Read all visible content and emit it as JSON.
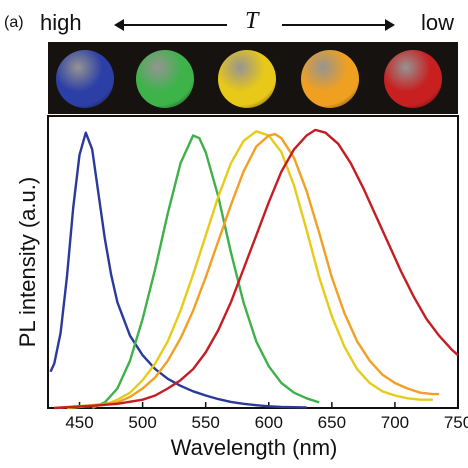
{
  "header": {
    "panel_label": "(a)",
    "high_label": "high",
    "temperature_symbol": "T",
    "low_label": "low"
  },
  "spheres": [
    {
      "color": "#2c3fa6"
    },
    {
      "color": "#3db34a"
    },
    {
      "color": "#e8c818"
    },
    {
      "color": "#f0a020"
    },
    {
      "color": "#c82020"
    }
  ],
  "chart_data": {
    "type": "line",
    "xlabel": "Wavelength (nm)",
    "ylabel": "PL intensity (a.u.)",
    "xlim": [
      425,
      750
    ],
    "ylim": [
      0,
      1.05
    ],
    "xticks": [
      450,
      500,
      550,
      600,
      650,
      700,
      750
    ],
    "series": [
      {
        "color": "#2b3a9a",
        "values": [
          [
            427,
            0.13
          ],
          [
            430,
            0.16
          ],
          [
            435,
            0.27
          ],
          [
            440,
            0.47
          ],
          [
            445,
            0.72
          ],
          [
            450,
            0.91
          ],
          [
            455,
            0.99
          ],
          [
            460,
            0.93
          ],
          [
            465,
            0.77
          ],
          [
            470,
            0.61
          ],
          [
            475,
            0.48
          ],
          [
            480,
            0.38
          ],
          [
            490,
            0.26
          ],
          [
            500,
            0.19
          ],
          [
            510,
            0.14
          ],
          [
            520,
            0.105
          ],
          [
            530,
            0.08
          ],
          [
            540,
            0.06
          ],
          [
            550,
            0.045
          ],
          [
            560,
            0.032
          ],
          [
            570,
            0.022
          ],
          [
            580,
            0.015
          ],
          [
            590,
            0.01
          ],
          [
            600,
            0.006
          ],
          [
            610,
            0.004
          ],
          [
            630,
            0.002
          ]
        ]
      },
      {
        "color": "#3fb14b",
        "values": [
          [
            460,
            0.0
          ],
          [
            470,
            0.02
          ],
          [
            480,
            0.07
          ],
          [
            490,
            0.17
          ],
          [
            500,
            0.32
          ],
          [
            510,
            0.5
          ],
          [
            520,
            0.7
          ],
          [
            530,
            0.88
          ],
          [
            540,
            0.98
          ],
          [
            545,
            0.97
          ],
          [
            550,
            0.92
          ],
          [
            560,
            0.76
          ],
          [
            570,
            0.56
          ],
          [
            580,
            0.38
          ],
          [
            590,
            0.24
          ],
          [
            600,
            0.15
          ],
          [
            610,
            0.09
          ],
          [
            620,
            0.055
          ],
          [
            630,
            0.035
          ],
          [
            640,
            0.02
          ]
        ]
      },
      {
        "color": "#e6cc1a",
        "values": [
          [
            440,
            0.0
          ],
          [
            470,
            0.012
          ],
          [
            480,
            0.03
          ],
          [
            490,
            0.055
          ],
          [
            500,
            0.1
          ],
          [
            510,
            0.16
          ],
          [
            520,
            0.24
          ],
          [
            530,
            0.35
          ],
          [
            540,
            0.48
          ],
          [
            550,
            0.62
          ],
          [
            560,
            0.76
          ],
          [
            570,
            0.88
          ],
          [
            580,
            0.96
          ],
          [
            590,
            0.995
          ],
          [
            600,
            0.98
          ],
          [
            610,
            0.92
          ],
          [
            620,
            0.8
          ],
          [
            630,
            0.64
          ],
          [
            640,
            0.47
          ],
          [
            650,
            0.33
          ],
          [
            660,
            0.22
          ],
          [
            670,
            0.14
          ],
          [
            680,
            0.09
          ],
          [
            690,
            0.06
          ],
          [
            700,
            0.045
          ],
          [
            710,
            0.035
          ],
          [
            720,
            0.03
          ],
          [
            730,
            0.03
          ]
        ]
      },
      {
        "color": "#f2a024",
        "values": [
          [
            430,
            0.0
          ],
          [
            460,
            0.01
          ],
          [
            480,
            0.02
          ],
          [
            490,
            0.04
          ],
          [
            500,
            0.07
          ],
          [
            510,
            0.11
          ],
          [
            520,
            0.17
          ],
          [
            530,
            0.25
          ],
          [
            540,
            0.35
          ],
          [
            550,
            0.47
          ],
          [
            560,
            0.6
          ],
          [
            570,
            0.73
          ],
          [
            580,
            0.85
          ],
          [
            590,
            0.94
          ],
          [
            600,
            0.98
          ],
          [
            605,
            0.985
          ],
          [
            610,
            0.97
          ],
          [
            620,
            0.9
          ],
          [
            630,
            0.78
          ],
          [
            640,
            0.63
          ],
          [
            650,
            0.47
          ],
          [
            660,
            0.34
          ],
          [
            670,
            0.24
          ],
          [
            680,
            0.17
          ],
          [
            690,
            0.12
          ],
          [
            700,
            0.09
          ],
          [
            710,
            0.07
          ],
          [
            720,
            0.055
          ],
          [
            730,
            0.05
          ],
          [
            735,
            0.05
          ]
        ]
      },
      {
        "color": "#c41e24",
        "values": [
          [
            430,
            0.0
          ],
          [
            460,
            0.008
          ],
          [
            480,
            0.015
          ],
          [
            500,
            0.03
          ],
          [
            510,
            0.045
          ],
          [
            520,
            0.07
          ],
          [
            530,
            0.1
          ],
          [
            540,
            0.14
          ],
          [
            550,
            0.2
          ],
          [
            560,
            0.28
          ],
          [
            570,
            0.38
          ],
          [
            580,
            0.5
          ],
          [
            590,
            0.62
          ],
          [
            600,
            0.74
          ],
          [
            610,
            0.85
          ],
          [
            620,
            0.93
          ],
          [
            630,
            0.98
          ],
          [
            637,
            1.0
          ],
          [
            645,
            0.99
          ],
          [
            655,
            0.95
          ],
          [
            665,
            0.88
          ],
          [
            675,
            0.79
          ],
          [
            685,
            0.69
          ],
          [
            695,
            0.59
          ],
          [
            705,
            0.49
          ],
          [
            715,
            0.4
          ],
          [
            725,
            0.32
          ],
          [
            735,
            0.26
          ],
          [
            745,
            0.21
          ],
          [
            750,
            0.19
          ]
        ]
      }
    ]
  }
}
